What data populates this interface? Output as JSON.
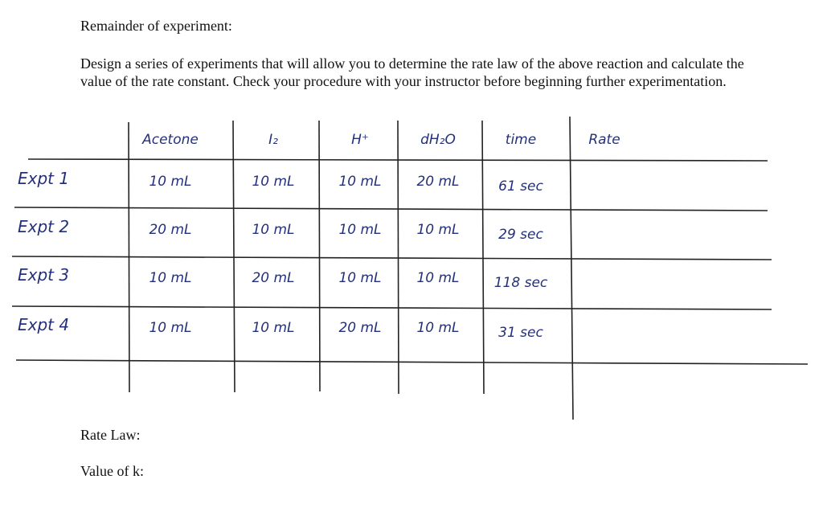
{
  "header": {
    "title": "Remainder of experiment:",
    "instructions": "Design a series of experiments that will allow you to determine the rate law of the above reaction and calculate the value of the rate constant.  Check your procedure with your instructor before beginning further experimentation."
  },
  "table": {
    "columns": [
      "Acetone",
      "I₂",
      "H⁺",
      "dH₂O",
      "time",
      "Rate"
    ],
    "rows": [
      [
        "Expt 1",
        "10 mL",
        "10 mL",
        "10 mL",
        "20 mL",
        "61 sec"
      ],
      [
        "Expt 2",
        "20 mL",
        "10 mL",
        "10 mL",
        "10 mL",
        "29 sec"
      ],
      [
        "Expt 3",
        "10 mL",
        "20 mL",
        "10 mL",
        "10 mL",
        "118 sec"
      ],
      [
        "Expt 4",
        "10 mL",
        "10 mL",
        "20 mL",
        "10 mL",
        "31 sec"
      ]
    ]
  },
  "footer": {
    "rate_law": "Rate Law:",
    "k_value": "Value of k:"
  }
}
